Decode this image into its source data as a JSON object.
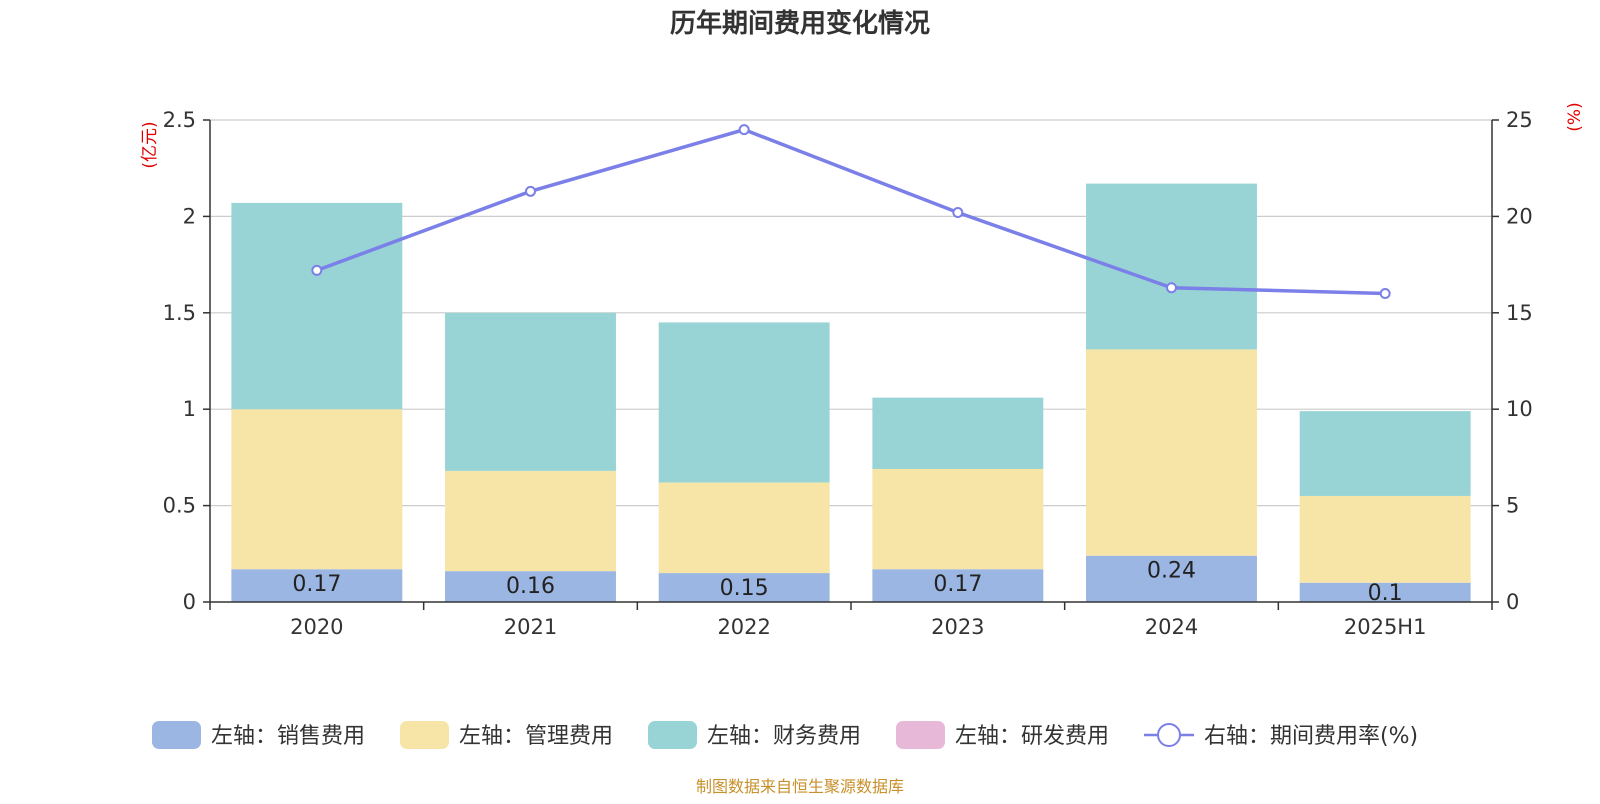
{
  "chart_data": {
    "type": "bar",
    "stacked": true,
    "title": "历年期间费用变化情况",
    "categories": [
      "2020",
      "2021",
      "2022",
      "2023",
      "2024",
      "2025H1"
    ],
    "series": [
      {
        "name": "左轴：销售费用",
        "axis": "left",
        "color": "#9bb6e2",
        "values": [
          0.17,
          0.16,
          0.15,
          0.17,
          0.24,
          0.1
        ],
        "labels": [
          "0.17",
          "0.16",
          "0.15",
          "0.17",
          "0.24",
          "0.1"
        ]
      },
      {
        "name": "左轴：管理费用",
        "axis": "left",
        "color": "#f7e5a8",
        "values": [
          0.83,
          0.52,
          0.47,
          0.52,
          1.07,
          0.45
        ]
      },
      {
        "name": "左轴：财务费用",
        "axis": "left",
        "color": "#98d4d5",
        "values": [
          1.07,
          0.82,
          0.83,
          0.37,
          0.86,
          0.44
        ]
      },
      {
        "name": "左轴：研发费用",
        "axis": "left",
        "color": "#e8b8d9",
        "values": [
          0,
          0,
          0,
          0,
          0,
          0
        ]
      }
    ],
    "line_series": {
      "name": "右轴：期间费用率(%)",
      "axis": "right",
      "color": "#7b7fe8",
      "values": [
        17.2,
        21.3,
        24.5,
        20.2,
        16.3,
        16.0
      ]
    },
    "left_axis": {
      "unit": "(亿元)",
      "ylim": [
        0,
        2.5
      ],
      "ticks": [
        "0",
        "0.5",
        "1",
        "1.5",
        "2",
        "2.5"
      ]
    },
    "right_axis": {
      "unit": "(%)",
      "ylim": [
        0,
        25
      ],
      "ticks": [
        "0",
        "5",
        "10",
        "15",
        "20",
        "25"
      ]
    },
    "grid": true,
    "legend_position": "bottom"
  },
  "source_text": "制图数据来自恒生聚源数据库"
}
